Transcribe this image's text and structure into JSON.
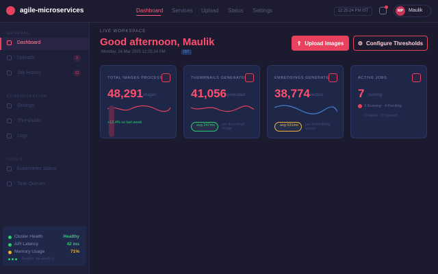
{
  "header": {
    "logo": "agile-microservices",
    "nav": [
      "Dashboard",
      "Services",
      "Upload",
      "Status",
      "Settings"
    ],
    "clock": "12:25:24 PM IST",
    "avatar_initials": "MP",
    "user": "Maulik"
  },
  "sidebar": {
    "sections": [
      {
        "title": "GENERAL",
        "items": [
          {
            "label": "Dashboard"
          },
          {
            "label": "Uploads",
            "badge": "2"
          },
          {
            "label": "Job History",
            "badge": "12"
          }
        ]
      },
      {
        "title": "CONFIGURATION",
        "items": [
          {
            "label": "Settings"
          },
          {
            "label": "Thresholds"
          },
          {
            "label": "Logs"
          }
        ]
      },
      {
        "title": "TOOLS",
        "items": [
          {
            "label": "Kubernetes Status"
          },
          {
            "label": "Task Queues"
          }
        ]
      }
    ],
    "status": [
      {
        "label": "Cluster Health",
        "value": "Healthy"
      },
      {
        "label": "API Latency",
        "value": "42 ms"
      },
      {
        "label": "Memory Usage",
        "value": "71%"
      }
    ],
    "footer": "Region: ap-south-1"
  },
  "main": {
    "eyebrow": "LIVE WORKSPACE",
    "greeting": "Good afternoon, Maulik",
    "date": "Monday, 24 Mar 2025 12:25:24 PM",
    "tz": "IST",
    "buttons": [
      "Upload Images",
      "Configure Thresholds"
    ],
    "cards": [
      {
        "title": "TOTAL IMAGES PROCESSED",
        "value": "48,291",
        "unit": "images",
        "note": "+12.4% vs last week"
      },
      {
        "title": "THUMBNAILS GENERATED",
        "value": "41,056",
        "unit": "generated",
        "pill": "avg 247ms",
        "note": "per thumbnail image"
      },
      {
        "title": "EMBEDDINGS GENERATED",
        "value": "38,774",
        "unit": "vectors",
        "pill": "avg 531ms",
        "note": "per embedding vector"
      },
      {
        "title": "ACTIVE JOBS",
        "value": "7",
        "unit": "running",
        "note": "3 Running · 4 Pending",
        "sub": "0 Failed · 0 Queued"
      }
    ]
  }
}
